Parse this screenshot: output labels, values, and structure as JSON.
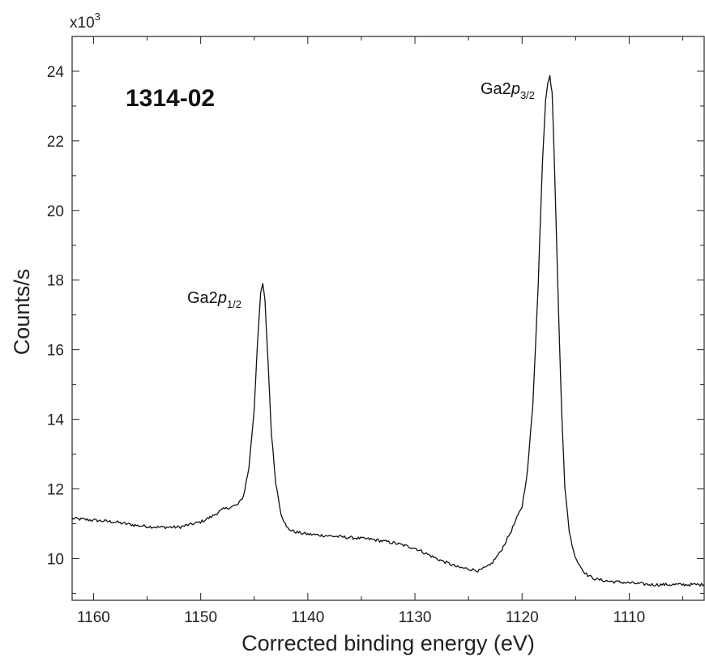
{
  "chart_data": {
    "type": "line",
    "title": "",
    "xlabel": "Corrected binding energy (eV)",
    "ylabel": "Counts/s",
    "y_multiplier_label": "x10",
    "y_multiplier_exponent": "3",
    "xlim": [
      1162,
      1103
    ],
    "ylim": [
      8.8,
      25
    ],
    "x_reversed": true,
    "x_ticks": [
      1160,
      1150,
      1140,
      1130,
      1120,
      1110
    ],
    "y_ticks": [
      10,
      12,
      14,
      16,
      18,
      20,
      22,
      24
    ],
    "grid": false,
    "sample_label": "1314-02",
    "annotations": [
      {
        "element": "Ga2",
        "orbital": "p",
        "subscript": "1/2",
        "x": 1144.2,
        "y": 17.9
      },
      {
        "element": "Ga2",
        "orbital": "p",
        "subscript": "3/2",
        "x": 1117.4,
        "y": 23.85
      }
    ],
    "series": [
      {
        "color": "#111111",
        "x": [
          1162,
          1160,
          1158,
          1156,
          1154,
          1152,
          1150,
          1149,
          1148,
          1147,
          1146.5,
          1146,
          1145.5,
          1145,
          1144.7,
          1144.4,
          1144.2,
          1144.0,
          1143.7,
          1143.4,
          1143,
          1142.5,
          1142,
          1141.5,
          1141,
          1140,
          1138,
          1136,
          1134,
          1132,
          1130,
          1128,
          1126,
          1124,
          1123,
          1122,
          1121,
          1120,
          1119.5,
          1119,
          1118.5,
          1118.1,
          1117.8,
          1117.6,
          1117.4,
          1117.2,
          1117.0,
          1116.7,
          1116.3,
          1116,
          1115.6,
          1115.2,
          1114.8,
          1114.4,
          1114,
          1113.5,
          1113,
          1112,
          1110,
          1108,
          1106,
          1104,
          1103
        ],
        "y": [
          11.15,
          11.1,
          11.05,
          10.95,
          10.9,
          10.9,
          11.05,
          11.2,
          11.4,
          11.5,
          11.55,
          11.8,
          12.6,
          14.3,
          16.2,
          17.6,
          17.9,
          17.4,
          15.6,
          13.6,
          12.2,
          11.3,
          10.9,
          10.8,
          10.75,
          10.7,
          10.65,
          10.6,
          10.55,
          10.45,
          10.3,
          10.0,
          9.75,
          9.65,
          9.8,
          10.2,
          10.8,
          11.5,
          12.5,
          14.4,
          17.8,
          21.4,
          23.2,
          23.7,
          23.85,
          23.4,
          21.6,
          18.2,
          14.2,
          12.0,
          10.8,
          10.2,
          9.9,
          9.7,
          9.55,
          9.45,
          9.4,
          9.35,
          9.3,
          9.25,
          9.25,
          9.25,
          9.25
        ]
      }
    ]
  }
}
